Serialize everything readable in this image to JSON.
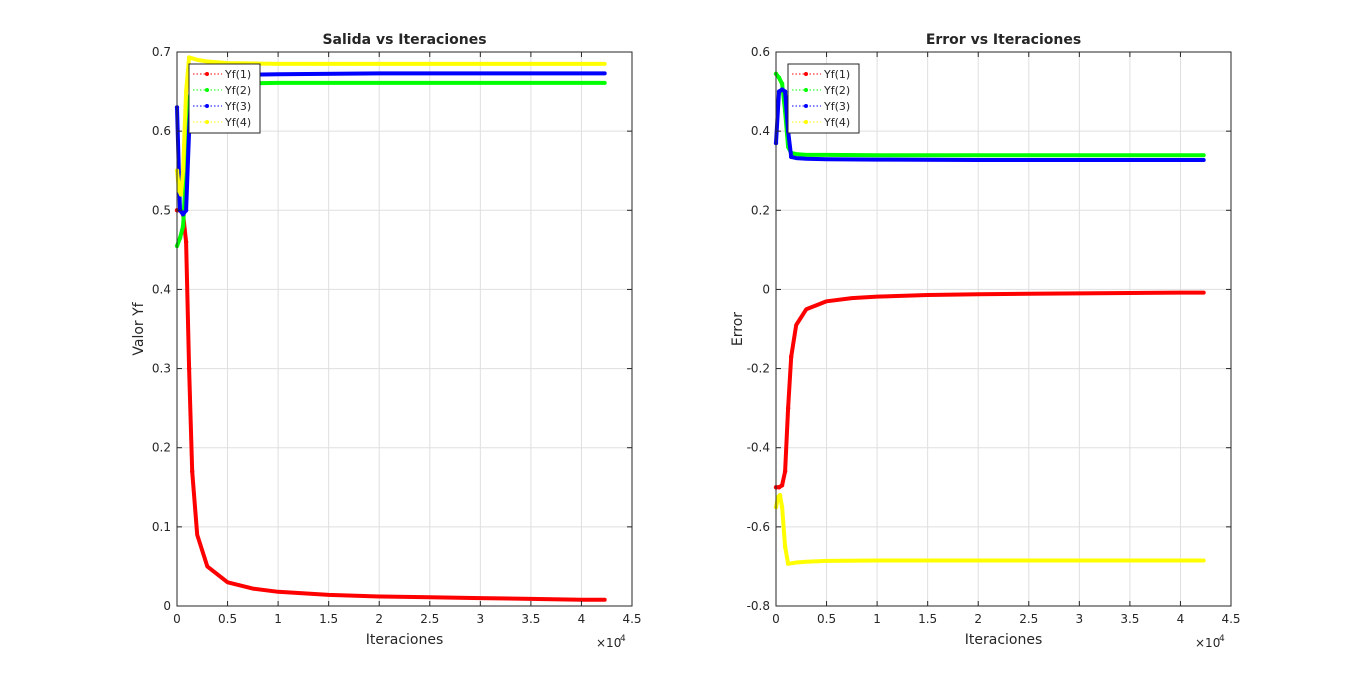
{
  "chart_data": [
    {
      "type": "line",
      "title": "Salida vs Iteraciones",
      "xlabel": "Iteraciones",
      "ylabel": "Valor Yf",
      "xlim": [
        0,
        45000
      ],
      "ylim": [
        0,
        0.7
      ],
      "xticks": [
        0,
        5000,
        10000,
        15000,
        20000,
        25000,
        30000,
        35000,
        40000,
        45000
      ],
      "xtick_labels": [
        "0",
        "0.5",
        "1",
        "1.5",
        "2",
        "2.5",
        "3",
        "3.5",
        "4",
        "4.5"
      ],
      "xscale_label": "×10",
      "xscale_exp": "4",
      "yticks": [
        0,
        0.1,
        0.2,
        0.3,
        0.4,
        0.5,
        0.6,
        0.7
      ],
      "ytick_labels": [
        "0",
        "0.1",
        "0.2",
        "0.3",
        "0.4",
        "0.5",
        "0.6",
        "0.7"
      ],
      "grid": true,
      "legend_position": "top-left",
      "series": [
        {
          "name": "Yf(1)",
          "color": "#ff0000",
          "x": [
            0,
            300,
            600,
            900,
            1200,
            1500,
            2000,
            3000,
            5000,
            7500,
            10000,
            15000,
            20000,
            25000,
            30000,
            35000,
            40000,
            42300
          ],
          "y": [
            0.5,
            0.5,
            0.495,
            0.46,
            0.3,
            0.17,
            0.09,
            0.05,
            0.03,
            0.022,
            0.018,
            0.014,
            0.012,
            0.011,
            0.01,
            0.009,
            0.008,
            0.008
          ]
        },
        {
          "name": "Yf(2)",
          "color": "#00ff00",
          "x": [
            0,
            300,
            600,
            900,
            1200,
            1500,
            2000,
            3000,
            5000,
            10000,
            20000,
            30000,
            42300
          ],
          "y": [
            0.455,
            0.465,
            0.48,
            0.55,
            0.64,
            0.655,
            0.658,
            0.66,
            0.66,
            0.661,
            0.661,
            0.661,
            0.661
          ]
        },
        {
          "name": "Yf(3)",
          "color": "#0000ff",
          "x": [
            0,
            300,
            600,
            900,
            1200,
            1500,
            2000,
            3000,
            5000,
            10000,
            20000,
            30000,
            42300
          ],
          "y": [
            0.63,
            0.5,
            0.495,
            0.5,
            0.6,
            0.665,
            0.668,
            0.67,
            0.671,
            0.672,
            0.673,
            0.673,
            0.673
          ]
        },
        {
          "name": "Yf(4)",
          "color": "#ffff00",
          "x": [
            0,
            200,
            400,
            600,
            900,
            1200,
            1500,
            2000,
            3000,
            5000,
            10000,
            20000,
            30000,
            42300
          ],
          "y": [
            0.55,
            0.525,
            0.52,
            0.55,
            0.65,
            0.693,
            0.692,
            0.69,
            0.688,
            0.686,
            0.685,
            0.685,
            0.685,
            0.685
          ]
        }
      ]
    },
    {
      "type": "line",
      "title": "Error vs Iteraciones",
      "xlabel": "Iteraciones",
      "ylabel": "Error",
      "xlim": [
        0,
        45000
      ],
      "ylim": [
        -0.8,
        0.6
      ],
      "xticks": [
        0,
        5000,
        10000,
        15000,
        20000,
        25000,
        30000,
        35000,
        40000,
        45000
      ],
      "xtick_labels": [
        "0",
        "0.5",
        "1",
        "1.5",
        "2",
        "2.5",
        "3",
        "3.5",
        "4",
        "4.5"
      ],
      "xscale_label": "×10",
      "xscale_exp": "4",
      "yticks": [
        -0.8,
        -0.6,
        -0.4,
        -0.2,
        0,
        0.2,
        0.4,
        0.6
      ],
      "ytick_labels": [
        "-0.8",
        "-0.6",
        "-0.4",
        "-0.2",
        "0",
        "0.2",
        "0.4",
        "0.6"
      ],
      "grid": true,
      "legend_position": "top-left",
      "series": [
        {
          "name": "Yf(1)",
          "color": "#ff0000",
          "x": [
            0,
            300,
            600,
            900,
            1200,
            1500,
            2000,
            3000,
            5000,
            7500,
            10000,
            15000,
            20000,
            25000,
            30000,
            35000,
            40000,
            42300
          ],
          "y": [
            -0.5,
            -0.5,
            -0.495,
            -0.46,
            -0.3,
            -0.17,
            -0.09,
            -0.05,
            -0.03,
            -0.022,
            -0.018,
            -0.014,
            -0.012,
            -0.011,
            -0.01,
            -0.009,
            -0.008,
            -0.008
          ]
        },
        {
          "name": "Yf(2)",
          "color": "#00ff00",
          "x": [
            0,
            300,
            600,
            900,
            1200,
            1500,
            2000,
            3000,
            5000,
            10000,
            20000,
            30000,
            42300
          ],
          "y": [
            0.545,
            0.535,
            0.52,
            0.45,
            0.36,
            0.345,
            0.342,
            0.34,
            0.34,
            0.339,
            0.339,
            0.339,
            0.339
          ]
        },
        {
          "name": "Yf(3)",
          "color": "#0000ff",
          "x": [
            0,
            300,
            600,
            900,
            1200,
            1500,
            2000,
            3000,
            5000,
            10000,
            20000,
            30000,
            42300
          ],
          "y": [
            0.37,
            0.5,
            0.505,
            0.5,
            0.4,
            0.335,
            0.332,
            0.33,
            0.329,
            0.328,
            0.327,
            0.327,
            0.327
          ]
        },
        {
          "name": "Yf(4)",
          "color": "#ffff00",
          "x": [
            0,
            200,
            400,
            600,
            900,
            1200,
            1500,
            2000,
            3000,
            5000,
            10000,
            20000,
            30000,
            42300
          ],
          "y": [
            -0.55,
            -0.525,
            -0.52,
            -0.55,
            -0.65,
            -0.693,
            -0.692,
            -0.69,
            -0.688,
            -0.686,
            -0.685,
            -0.685,
            -0.685,
            -0.685
          ]
        }
      ]
    }
  ]
}
